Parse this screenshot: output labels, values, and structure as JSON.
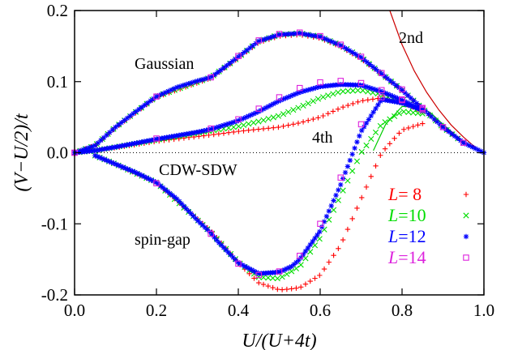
{
  "chart_data": {
    "type": "scatter",
    "title": "",
    "xlabel": "U/(U+4t)",
    "ylabel": "(V−U/2)/t",
    "xlim": [
      0.0,
      1.0
    ],
    "ylim": [
      -0.2,
      0.2
    ],
    "xticks": [
      "0.0",
      "0.2",
      "0.4",
      "0.6",
      "0.8",
      "1.0"
    ],
    "yticks": [
      "-0.2",
      "-0.1",
      "0.0",
      "0.1",
      "0.2"
    ],
    "grid": false,
    "legend_position": "lower-right",
    "annotations": {
      "gaussian": "Gaussian",
      "cdw_sdw": "CDW-SDW",
      "spin_gap": "spin-gap",
      "second": "2nd",
      "fourth": "4th"
    },
    "series": [
      {
        "name": "L= 8",
        "label_prefix": "L",
        "label_value": "= 8",
        "color": "#ff0000",
        "marker": "plus",
        "curves": {
          "gaussian": {
            "x": [
              0,
              0.05,
              0.1,
              0.2,
              0.333,
              0.4,
              0.45,
              0.5,
              0.55,
              0.6,
              0.65,
              0.7,
              0.75,
              0.8,
              0.85,
              0.9,
              0.95
            ],
            "y": [
              0,
              0.01,
              0.035,
              0.078,
              0.105,
              0.133,
              0.155,
              0.164,
              0.166,
              0.161,
              0.149,
              0.132,
              0.11,
              0.088,
              0.062,
              0.036,
              0.014
            ]
          },
          "cdw": {
            "x": [
              0,
              0.05,
              0.1,
              0.2,
              0.333,
              0.4,
              0.45,
              0.5,
              0.55,
              0.6,
              0.65,
              0.7,
              0.75,
              0.8,
              0.85
            ],
            "y": [
              0,
              0.003,
              0.007,
              0.016,
              0.025,
              0.03,
              0.033,
              0.036,
              0.042,
              0.05,
              0.063,
              0.073,
              0.077,
              0.071,
              0.058
            ]
          },
          "spin": {
            "x": [
              0.05,
              0.1,
              0.2,
              0.333,
              0.4,
              0.45,
              0.5,
              0.52,
              0.55,
              0.6,
              0.65,
              0.7,
              0.75,
              0.8,
              0.85
            ],
            "y": [
              -0.004,
              -0.016,
              -0.042,
              -0.11,
              -0.155,
              -0.183,
              -0.193,
              -0.192,
              -0.19,
              -0.172,
              -0.13,
              -0.065,
              0.0,
              0.032,
              0.041
            ]
          }
        }
      },
      {
        "name": "L=10",
        "label_prefix": "L",
        "label_value": "=10",
        "color": "#00dd00",
        "marker": "cross",
        "curves": {
          "gaussian": {
            "x": [
              0,
              0.05,
              0.1,
              0.2,
              0.333,
              0.4,
              0.45,
              0.5,
              0.55,
              0.6,
              0.65,
              0.7,
              0.75,
              0.8,
              0.85,
              0.9,
              0.95
            ],
            "y": [
              0,
              0.01,
              0.036,
              0.079,
              0.106,
              0.134,
              0.157,
              0.166,
              0.168,
              0.163,
              0.151,
              0.134,
              0.111,
              0.088,
              0.062,
              0.036,
              0.014
            ]
          },
          "cdw": {
            "x": [
              0,
              0.05,
              0.1,
              0.2,
              0.333,
              0.4,
              0.45,
              0.5,
              0.55,
              0.6,
              0.65,
              0.7,
              0.75,
              0.8,
              0.85
            ],
            "y": [
              0,
              0.003,
              0.008,
              0.018,
              0.031,
              0.037,
              0.044,
              0.052,
              0.064,
              0.077,
              0.086,
              0.088,
              0.082,
              0.071,
              0.058
            ]
          },
          "spin": {
            "x": [
              0.05,
              0.1,
              0.2,
              0.333,
              0.4,
              0.45,
              0.5,
              0.55,
              0.6,
              0.65,
              0.7,
              0.75,
              0.8,
              0.85
            ],
            "y": [
              -0.004,
              -0.016,
              -0.042,
              -0.112,
              -0.154,
              -0.175,
              -0.177,
              -0.16,
              -0.12,
              -0.06,
              0.0,
              0.04,
              0.058,
              0.055
            ]
          }
        }
      },
      {
        "name": "L=12",
        "label_prefix": "L",
        "label_value": "=12",
        "color": "#0000ff",
        "marker": "star",
        "curves": {
          "gaussian": {
            "x": [
              0,
              0.05,
              0.1,
              0.15,
              0.2,
              0.25,
              0.3,
              0.333,
              0.35,
              0.4,
              0.45,
              0.5,
              0.55,
              0.6,
              0.65,
              0.7,
              0.75,
              0.8,
              0.85,
              0.9,
              0.95,
              1.0
            ],
            "y": [
              0,
              0.01,
              0.036,
              0.058,
              0.079,
              0.092,
              0.101,
              0.106,
              0.113,
              0.135,
              0.157,
              0.166,
              0.168,
              0.163,
              0.151,
              0.134,
              0.111,
              0.088,
              0.062,
              0.036,
              0.014,
              0
            ]
          },
          "cdw": {
            "x": [
              0,
              0.05,
              0.1,
              0.2,
              0.3,
              0.333,
              0.4,
              0.45,
              0.5,
              0.55,
              0.6,
              0.65,
              0.7,
              0.75,
              0.8,
              0.85
            ],
            "y": [
              0,
              0.003,
              0.008,
              0.019,
              0.029,
              0.033,
              0.045,
              0.058,
              0.073,
              0.085,
              0.093,
              0.096,
              0.095,
              0.086,
              0.074,
              0.06
            ]
          },
          "spin": {
            "x": [
              0.05,
              0.1,
              0.15,
              0.2,
              0.25,
              0.3,
              0.333,
              0.35,
              0.4,
              0.45,
              0.5,
              0.53,
              0.55,
              0.6,
              0.65,
              0.7,
              0.75,
              0.8,
              0.85
            ],
            "y": [
              -0.004,
              -0.016,
              -0.028,
              -0.042,
              -0.065,
              -0.095,
              -0.113,
              -0.125,
              -0.155,
              -0.17,
              -0.168,
              -0.16,
              -0.15,
              -0.11,
              -0.045,
              0.03,
              0.075,
              0.07,
              0.06
            ]
          }
        }
      },
      {
        "name": "L=14",
        "label_prefix": "L",
        "label_value": "=14",
        "color": "#dd22dd",
        "marker": "square",
        "curves": {
          "gaussian": {
            "x": [
              0,
              0.2,
              0.333,
              0.4,
              0.45,
              0.5,
              0.55,
              0.6,
              0.65,
              0.7,
              0.75,
              0.8,
              0.85,
              0.9,
              0.95
            ],
            "y": [
              0,
              0.079,
              0.106,
              0.136,
              0.158,
              0.167,
              0.169,
              0.164,
              0.152,
              0.135,
              0.112,
              0.089,
              0.063,
              0.036,
              0.014
            ]
          },
          "cdw": {
            "x": [
              0,
              0.2,
              0.333,
              0.4,
              0.45,
              0.5,
              0.55,
              0.6,
              0.65,
              0.7,
              0.75,
              0.8,
              0.85
            ],
            "y": [
              0,
              0.02,
              0.034,
              0.047,
              0.062,
              0.078,
              0.091,
              0.099,
              0.101,
              0.098,
              0.088,
              0.074,
              0.06
            ]
          },
          "spin": {
            "x": [
              0.2,
              0.333,
              0.4,
              0.45,
              0.5,
              0.55,
              0.6,
              0.65,
              0.7,
              0.75,
              0.8,
              0.85
            ],
            "y": [
              -0.043,
              -0.114,
              -0.156,
              -0.172,
              -0.167,
              -0.145,
              -0.1,
              -0.035,
              0.04,
              0.078,
              0.075,
              0.062
            ]
          }
        }
      }
    ],
    "lines": [
      {
        "name": "2nd",
        "color": "#cc0000",
        "x": [
          0.77,
          0.8,
          0.83,
          0.86,
          0.89,
          0.92,
          0.95,
          0.98,
          1.0
        ],
        "y": [
          0.2,
          0.152,
          0.115,
          0.085,
          0.06,
          0.039,
          0.022,
          0.007,
          0.0
        ]
      },
      {
        "name": "4th",
        "color": "#00cc00",
        "x": [
          0.73,
          0.76,
          0.8,
          0.84,
          0.87,
          0.9,
          0.94,
          0.97,
          1.0
        ],
        "y": [
          0.003,
          0.04,
          0.065,
          0.066,
          0.056,
          0.04,
          0.02,
          0.007,
          0.0
        ]
      }
    ]
  }
}
